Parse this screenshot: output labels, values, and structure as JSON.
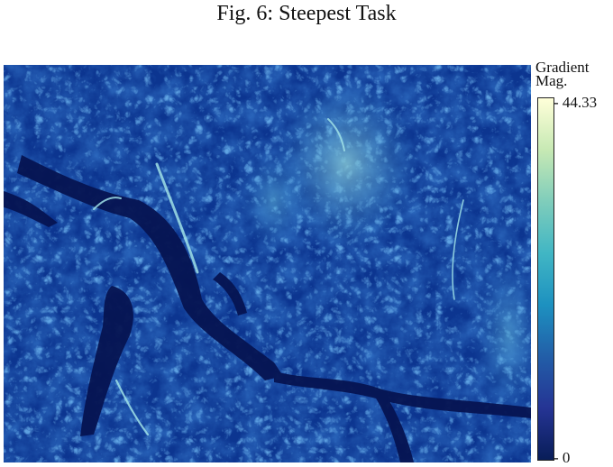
{
  "title": "Fig. 6: Steepest Task",
  "map": {
    "description_layer": "gradient magnitude terrain",
    "colors": {
      "deep": "#071a5c",
      "base": "#0d3a99",
      "mid": "#1f66c8",
      "ridge": "#49b7d6",
      "high": "#c8efc6"
    }
  },
  "colorbar": {
    "title_line1": "Gradient",
    "title_line2": "Mag.",
    "max_label": "- 44.33",
    "min_label": "- 0",
    "stops": [
      "#081d58",
      "#253494",
      "#225ea8",
      "#1d91c0",
      "#41b6c4",
      "#7fcdbb",
      "#c7e9b4",
      "#ffffd9"
    ]
  }
}
